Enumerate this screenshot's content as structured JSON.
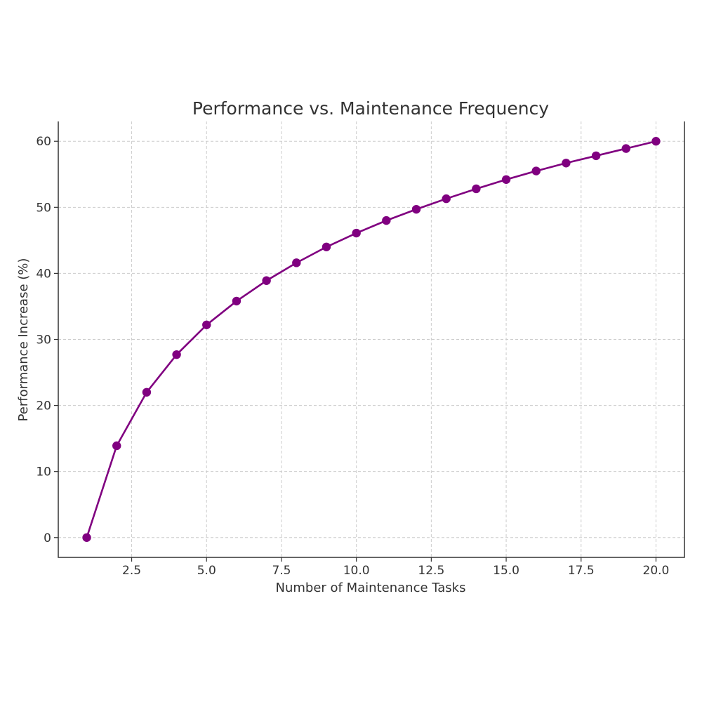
{
  "chart_data": {
    "type": "line",
    "title": "Performance vs. Maintenance Frequency",
    "xlabel": "Number of Maintenance Tasks",
    "ylabel": "Performance Increase (%)",
    "xlim": [
      0.05,
      20.95
    ],
    "ylim": [
      -3.0,
      63.0
    ],
    "xticks": [
      2.5,
      5.0,
      7.5,
      10.0,
      12.5,
      15.0,
      17.5,
      20.0
    ],
    "xtick_labels": [
      "2.5",
      "5.0",
      "7.5",
      "10.0",
      "12.5",
      "15.0",
      "17.5",
      "20.0"
    ],
    "yticks": [
      0,
      10,
      20,
      30,
      40,
      50,
      60
    ],
    "ytick_labels": [
      "0",
      "10",
      "20",
      "30",
      "40",
      "50",
      "60"
    ],
    "grid": true,
    "series": [
      {
        "color": "#800080",
        "marker": "circle",
        "x": [
          1,
          2,
          3,
          4,
          5,
          6,
          7,
          8,
          9,
          10,
          11,
          12,
          13,
          14,
          15,
          16,
          17,
          18,
          19,
          20
        ],
        "y": [
          0,
          13.9,
          22.0,
          27.7,
          32.2,
          35.8,
          38.9,
          41.6,
          44.0,
          46.1,
          48.0,
          49.7,
          51.3,
          52.8,
          54.2,
          55.5,
          56.7,
          57.8,
          58.9,
          60.0
        ]
      }
    ]
  }
}
